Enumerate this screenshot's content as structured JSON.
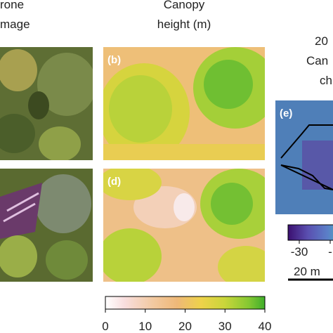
{
  "headers": {
    "drone": [
      "rone",
      "mage"
    ],
    "canopy": [
      "Canopy",
      "height (m)"
    ],
    "change": [
      "20",
      "Can",
      "ch"
    ]
  },
  "panels": {
    "b": "(b)",
    "d": "(d)",
    "e": "(e)"
  },
  "height_colorbar": {
    "ticks": [
      0,
      10,
      20,
      30,
      40
    ]
  },
  "change_colorbar": {
    "ticks": [
      -30
    ],
    "partial_tick": "-"
  },
  "scale_bar": "20 m"
}
